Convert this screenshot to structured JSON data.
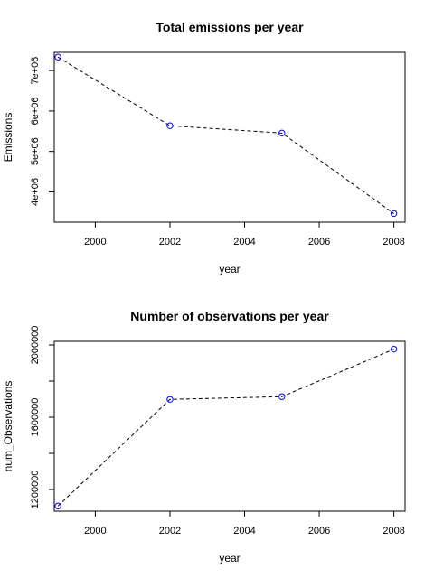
{
  "chart_data": [
    {
      "type": "line",
      "title": "Total emissions per year",
      "xlabel": "year",
      "ylabel": "Emissions",
      "x": [
        1999,
        2002,
        2005,
        2008
      ],
      "series": [
        {
          "values": [
            7332967,
            5635780,
            5454703,
            3464206
          ]
        }
      ],
      "xlim": [
        1998.9,
        2008.3
      ],
      "ylim": [
        3250000,
        7450000
      ],
      "xticks": [
        2000,
        2002,
        2004,
        2006,
        2008
      ],
      "xtick_labels": [
        "2000",
        "2002",
        "2004",
        "2006",
        "2008"
      ],
      "yticks": [
        4000000,
        5000000,
        6000000,
        7000000
      ],
      "ytick_labels": [
        "4e+06",
        "5e+06",
        "6e+06",
        "7e+06"
      ],
      "line_style": "dashed",
      "marker": "open-circle",
      "marker_color": "#0000ff",
      "line_color": "#000000",
      "grid": false
    },
    {
      "type": "line",
      "title": "Number of observations per year",
      "xlabel": "year",
      "ylabel": "num_Observations",
      "x": [
        1999,
        2002,
        2005,
        2008
      ],
      "series": [
        {
          "values": [
            1108469,
            1698677,
            1713850,
            1976655
          ]
        }
      ],
      "xlim": [
        1998.9,
        2008.3
      ],
      "ylim": [
        1080000,
        2020000
      ],
      "xticks": [
        2000,
        2002,
        2004,
        2006,
        2008
      ],
      "xtick_labels": [
        "2000",
        "2002",
        "2004",
        "2006",
        "2008"
      ],
      "yticks": [
        1200000,
        1400000,
        1600000,
        1800000,
        2000000
      ],
      "ytick_labels": [
        "1200000",
        "",
        "1600000",
        "",
        "2000000"
      ],
      "line_style": "dashed",
      "marker": "open-circle",
      "marker_color": "#0000ff",
      "line_color": "#000000",
      "grid": false
    }
  ]
}
